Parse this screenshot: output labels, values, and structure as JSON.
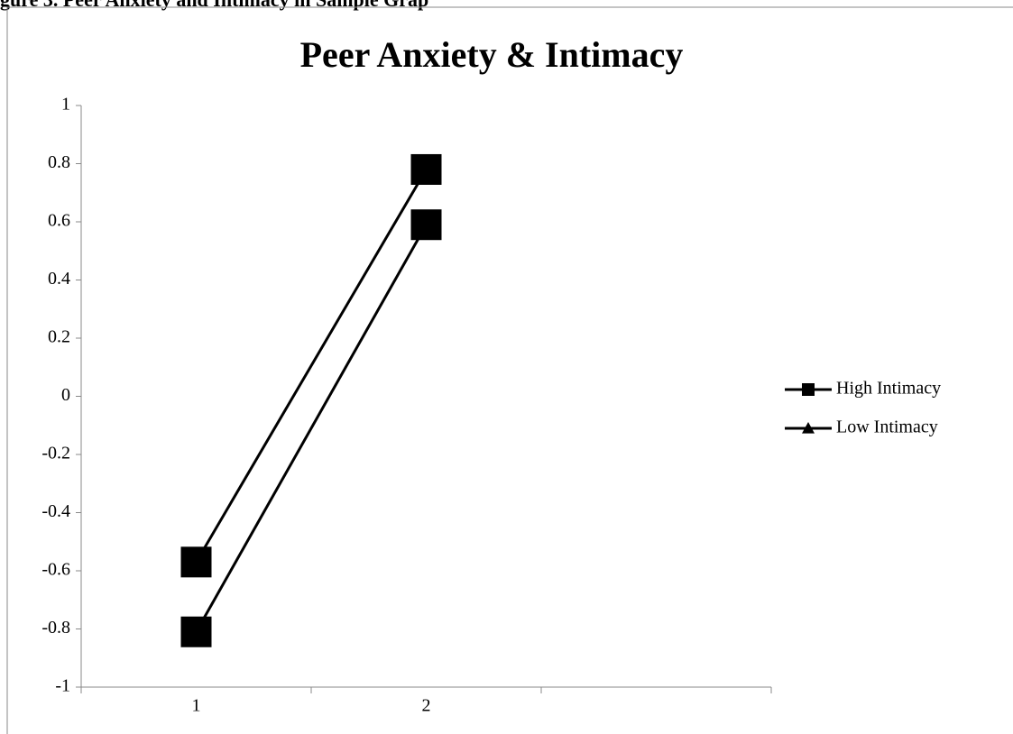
{
  "caption": "gure 3. Peer Anxiety and Intimacy in Sample Grap",
  "chart_data": {
    "type": "line",
    "title": "Peer Anxiety & Intimacy",
    "categories": [
      "1",
      "2"
    ],
    "series": [
      {
        "name": "High Intimacy",
        "color": "#000000",
        "legend_marker": "square",
        "values": [
          -0.57,
          0.78
        ]
      },
      {
        "name": "Low Intimacy",
        "color": "#000000",
        "legend_marker": "triangle",
        "values": [
          -0.81,
          0.59
        ]
      }
    ],
    "point_marker": "square",
    "ylim": [
      -1,
      1
    ],
    "yticks": [
      -1,
      -0.8,
      -0.6,
      -0.4,
      -0.2,
      0,
      0.2,
      0.4,
      0.6,
      0.8,
      1
    ],
    "grid": false,
    "legend": "right"
  }
}
